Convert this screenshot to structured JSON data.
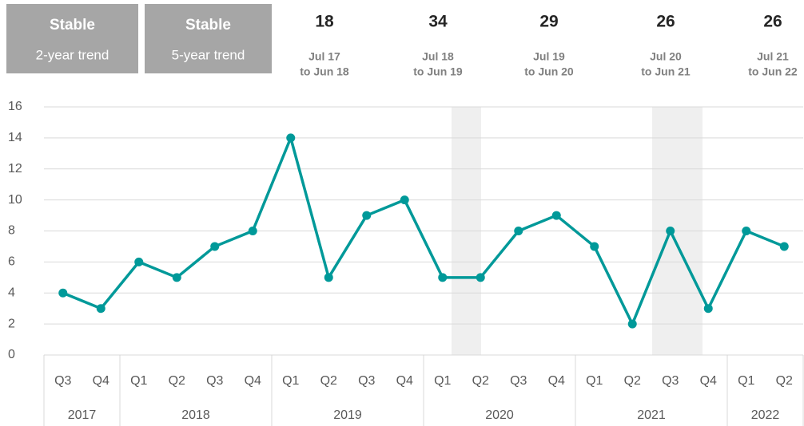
{
  "header": {
    "trend_boxes": [
      {
        "status": "Stable",
        "label": "2-year trend"
      },
      {
        "status": "Stable",
        "label": "5-year trend"
      }
    ],
    "period_totals": [
      {
        "value": 18,
        "line1": "Jul 17",
        "line2": "to Jun 18"
      },
      {
        "value": 34,
        "line1": "Jul 18",
        "line2": "to Jun 19"
      },
      {
        "value": 29,
        "line1": "Jul 19",
        "line2": "to Jun 20"
      },
      {
        "value": 26,
        "line1": "Jul 20",
        "line2": "to Jun 21"
      },
      {
        "value": 26,
        "line1": "Jul 21",
        "line2": "to Jun 22"
      }
    ]
  },
  "chart_data": {
    "type": "line",
    "categories": [
      {
        "quarter": "Q3",
        "year": "2017"
      },
      {
        "quarter": "Q4",
        "year": "2017"
      },
      {
        "quarter": "Q1",
        "year": "2018"
      },
      {
        "quarter": "Q2",
        "year": "2018"
      },
      {
        "quarter": "Q3",
        "year": "2018"
      },
      {
        "quarter": "Q4",
        "year": "2018"
      },
      {
        "quarter": "Q1",
        "year": "2019"
      },
      {
        "quarter": "Q2",
        "year": "2019"
      },
      {
        "quarter": "Q3",
        "year": "2019"
      },
      {
        "quarter": "Q4",
        "year": "2019"
      },
      {
        "quarter": "Q1",
        "year": "2020"
      },
      {
        "quarter": "Q2",
        "year": "2020"
      },
      {
        "quarter": "Q3",
        "year": "2020"
      },
      {
        "quarter": "Q4",
        "year": "2020"
      },
      {
        "quarter": "Q1",
        "year": "2021"
      },
      {
        "quarter": "Q2",
        "year": "2021"
      },
      {
        "quarter": "Q3",
        "year": "2021"
      },
      {
        "quarter": "Q4",
        "year": "2021"
      },
      {
        "quarter": "Q1",
        "year": "2022"
      },
      {
        "quarter": "Q2",
        "year": "2022"
      }
    ],
    "values": [
      4,
      3,
      6,
      5,
      7,
      8,
      14,
      5,
      9,
      10,
      5,
      5,
      8,
      9,
      7,
      2,
      8,
      3,
      8,
      7
    ],
    "color": "#009999",
    "ylim": [
      0,
      16
    ],
    "yticks": [
      0,
      2,
      4,
      6,
      8,
      10,
      12,
      14,
      16
    ],
    "grid": true
  }
}
